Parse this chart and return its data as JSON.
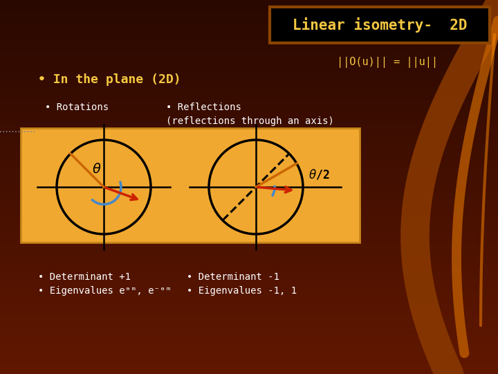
{
  "title": "Linear isometry-  2D",
  "title_bg": "#000000",
  "title_fg": "#F5C842",
  "title_border": "#8B4500",
  "norm_eq": "||O(u)|| = ||u||",
  "bullet_plane": "• In the plane (2D)",
  "bullet_rotations": "• Rotations",
  "bullet_reflections": "• Reflections\n(reflections through an axis)",
  "bullet_det1": "• Determinant +1",
  "bullet_eig1": "• Eigenvalues eᵊᵐ, e⁻ᵊᵐ",
  "bullet_det2": "• Determinant -1",
  "bullet_eig2": "• Eigenvalues -1, 1",
  "diagram_bg": "#F0A830",
  "diagram_border": "#C8871A",
  "circle_color": "#000000",
  "axis_color": "#000000",
  "arrow_color": "#CC2200",
  "arc_color": "#4488CC",
  "dashed_color": "#000000",
  "orange_line_color": "#CC6600",
  "text_color_white": "#FFFFFF",
  "text_color_yellow": "#F5C842",
  "bg_color_dark": "#2A0800",
  "bg_color_mid": "#5A1200"
}
